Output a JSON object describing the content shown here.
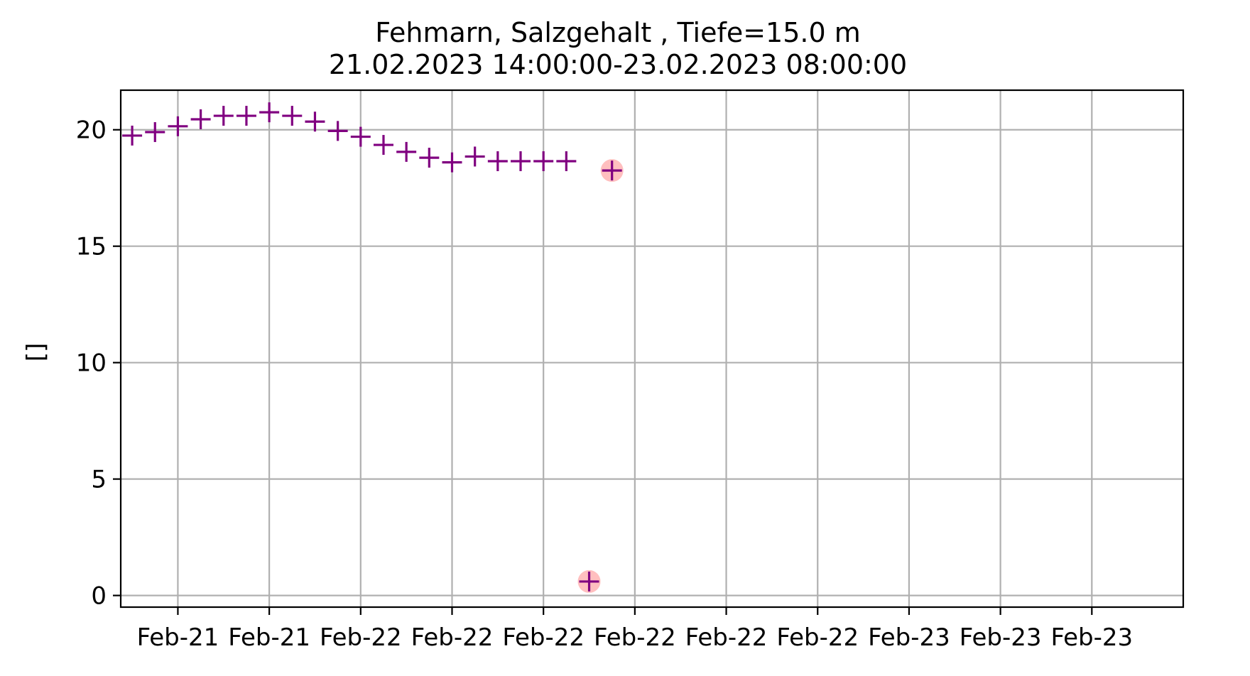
{
  "chart_data": {
    "type": "scatter",
    "title": "Fehmarn, Salzgehalt , Tiefe=15.0 m",
    "subtitle": "21.02.2023 14:00:00-23.02.2023 08:00:00",
    "xlabel": "",
    "ylabel": "[]",
    "x_unit": "hours since 21.02.2023 00:00",
    "xlim": [
      13.5,
      60
    ],
    "ylim": [
      -0.5,
      21.7
    ],
    "yticks": [
      0,
      5,
      10,
      15,
      20
    ],
    "xticks": [
      {
        "value": 16,
        "label": "Feb-21"
      },
      {
        "value": 20,
        "label": "Feb-21"
      },
      {
        "value": 24,
        "label": "Feb-22"
      },
      {
        "value": 28,
        "label": "Feb-22"
      },
      {
        "value": 32,
        "label": "Feb-22"
      },
      {
        "value": 36,
        "label": "Feb-22"
      },
      {
        "value": 40,
        "label": "Feb-22"
      },
      {
        "value": 44,
        "label": "Feb-22"
      },
      {
        "value": 48,
        "label": "Feb-23"
      },
      {
        "value": 52,
        "label": "Feb-23"
      },
      {
        "value": 56,
        "label": "Feb-23"
      }
    ],
    "grid": true,
    "marker_color": "#800080",
    "flag_color": "#ff7f7f",
    "series": [
      {
        "marker": "plus",
        "points": [
          {
            "x": 14,
            "y": 19.75
          },
          {
            "x": 15,
            "y": 19.9
          },
          {
            "x": 16,
            "y": 20.15
          },
          {
            "x": 17,
            "y": 20.45
          },
          {
            "x": 18,
            "y": 20.6
          },
          {
            "x": 19,
            "y": 20.6
          },
          {
            "x": 20,
            "y": 20.75
          },
          {
            "x": 21,
            "y": 20.6
          },
          {
            "x": 22,
            "y": 20.35
          },
          {
            "x": 23,
            "y": 19.95
          },
          {
            "x": 24,
            "y": 19.7
          },
          {
            "x": 25,
            "y": 19.35
          },
          {
            "x": 26,
            "y": 19.05
          },
          {
            "x": 27,
            "y": 18.8
          },
          {
            "x": 28,
            "y": 18.6
          },
          {
            "x": 29,
            "y": 18.85
          },
          {
            "x": 30,
            "y": 18.65
          },
          {
            "x": 31,
            "y": 18.65
          },
          {
            "x": 32,
            "y": 18.65
          },
          {
            "x": 33,
            "y": 18.65
          },
          {
            "x": 34,
            "y": 0.6,
            "flagged": true
          },
          {
            "x": 35,
            "y": 18.25,
            "flagged": true
          }
        ]
      }
    ]
  }
}
